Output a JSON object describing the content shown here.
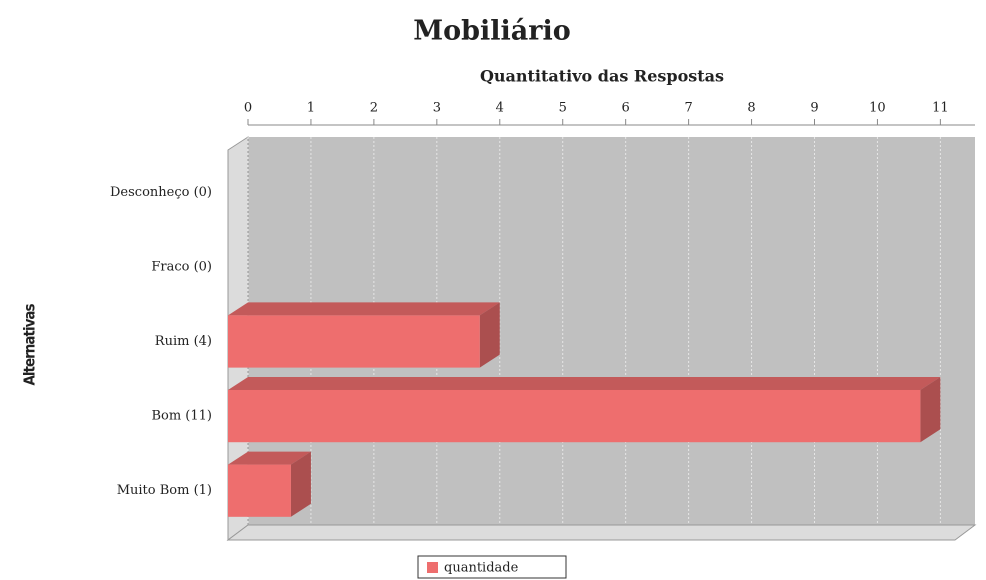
{
  "chart_data": {
    "type": "bar3d_horizontal",
    "title": "Mobiliário",
    "x_label": "Quantitativo das Respostas",
    "y_label": "Alternativas",
    "categories": [
      "Desconheço (0)",
      "Fraco (0)",
      "Ruim (4)",
      "Bom (11)",
      "Muito Bom (1)"
    ],
    "series": [
      {
        "name": "quantidade",
        "color": "#ee6e6e",
        "values": [
          0,
          0,
          4,
          11,
          1
        ]
      }
    ],
    "xlim": [
      0,
      11.55
    ],
    "xticks": [
      0,
      1,
      2,
      3,
      4,
      5,
      6,
      7,
      8,
      9,
      10,
      11
    ],
    "grid": true,
    "legend": "bottom"
  }
}
